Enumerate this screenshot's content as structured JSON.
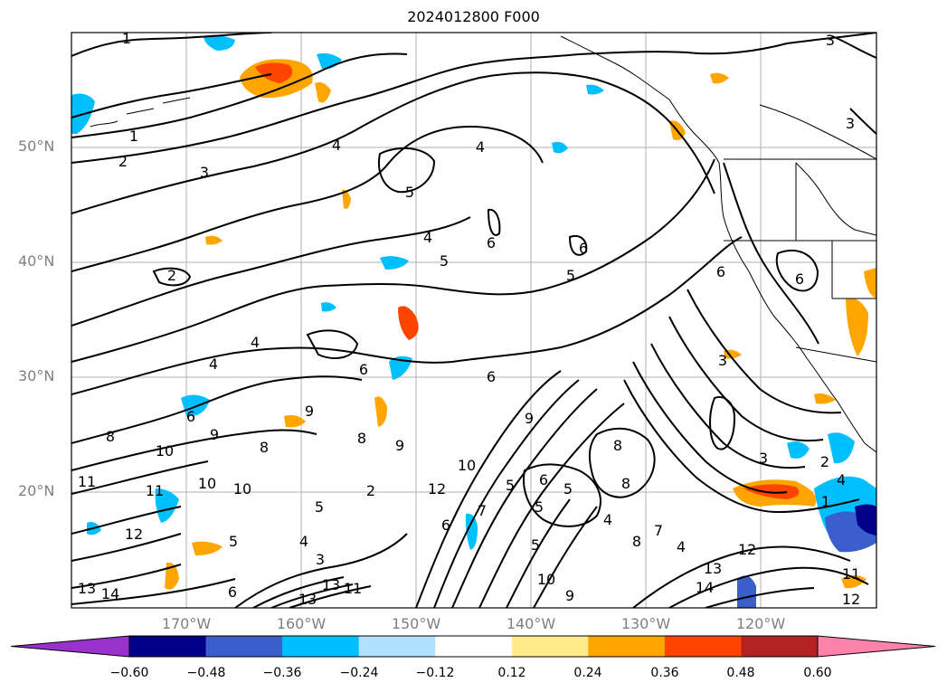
{
  "title": "2024012800 F000",
  "latitude_labels": [
    "50°N",
    "40°N",
    "30°N",
    "20°N"
  ],
  "longitude_labels": [
    "170°W",
    "160°W",
    "150°W",
    "140°W",
    "130°W",
    "120°W"
  ],
  "colorbar": {
    "ticks": [
      "−0.60",
      "−0.48",
      "−0.36",
      "−0.24",
      "−0.12",
      "0.12",
      "0.24",
      "0.36",
      "0.48",
      "0.60"
    ],
    "colors": [
      "#9932cc",
      "#00008b",
      "#3a5fcd",
      "#00bfff",
      "#b0e2ff",
      "#ffffff",
      "#ffec8b",
      "#ffa500",
      "#ff4500",
      "#b22222",
      "#ff82ab"
    ]
  },
  "contour_labels": [
    "1",
    "1",
    "2",
    "3",
    "4",
    "4",
    "5",
    "4",
    "5",
    "6",
    "6",
    "5",
    "6",
    "6",
    "3",
    "3",
    "3",
    "2",
    "4",
    "4",
    "6",
    "6",
    "6",
    "8",
    "9",
    "9",
    "10",
    "8",
    "9",
    "10",
    "11",
    "8",
    "10",
    "11",
    "12",
    "13",
    "14",
    "13",
    "13",
    "11",
    "12",
    "10",
    "9",
    "8",
    "8",
    "6",
    "5",
    "4",
    "5",
    "5",
    "5",
    "4",
    "1",
    "3",
    "2",
    "4",
    "5",
    "7",
    "6",
    "12",
    "14",
    "13",
    "12",
    "11",
    "10",
    "9",
    "8",
    "7",
    "6",
    "5",
    "4",
    "3",
    "2"
  ]
}
